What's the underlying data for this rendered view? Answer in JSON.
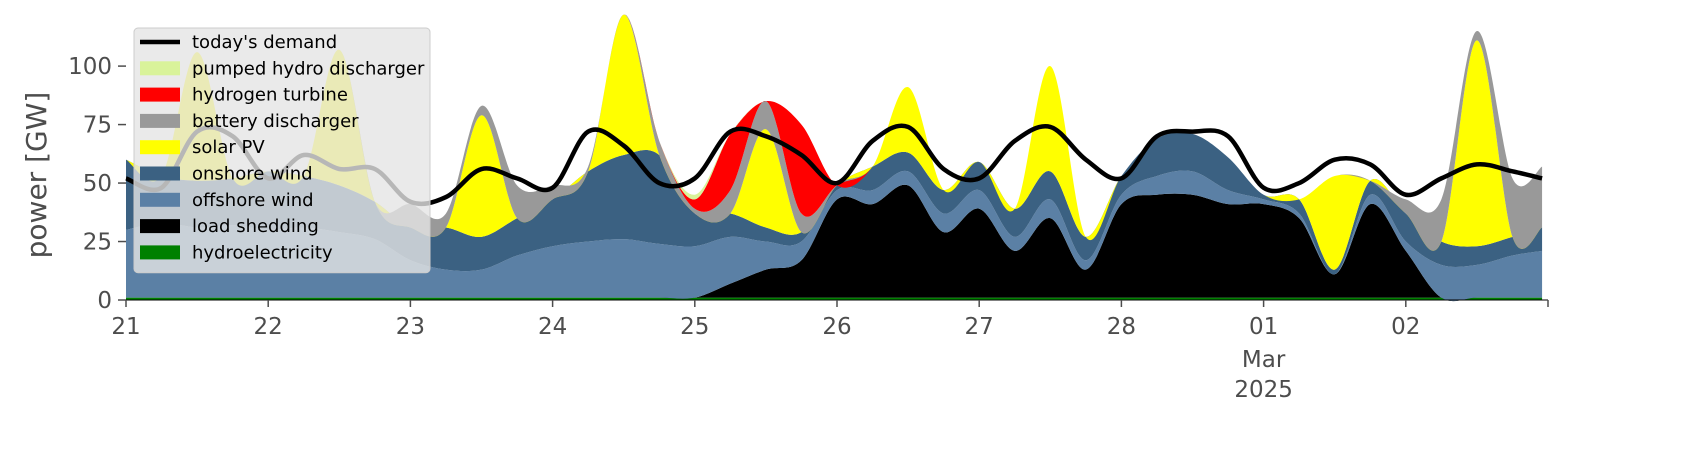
{
  "chart_data": {
    "type": "area",
    "title": "",
    "xlabel": "",
    "ylabel": "power [GW]",
    "ylim": [
      0,
      118
    ],
    "yticks": [
      0,
      25,
      50,
      75,
      100
    ],
    "x_start": "2025-02-21",
    "x_end": "2025-03-03",
    "xticks": [
      {
        "x": "2025-02-21",
        "label": "21"
      },
      {
        "x": "2025-02-22",
        "label": "22"
      },
      {
        "x": "2025-02-23",
        "label": "23"
      },
      {
        "x": "2025-02-24",
        "label": "24"
      },
      {
        "x": "2025-02-25",
        "label": "25"
      },
      {
        "x": "2025-02-26",
        "label": "26"
      },
      {
        "x": "2025-02-27",
        "label": "27"
      },
      {
        "x": "2025-02-28",
        "label": "28"
      },
      {
        "x": "2025-03-01",
        "label": "01",
        "sub": [
          "Mar",
          "2025"
        ]
      },
      {
        "x": "2025-03-02",
        "label": "02"
      }
    ],
    "x": [
      "2025-02-21 00:00",
      "2025-02-21 06:00",
      "2025-02-21 12:00",
      "2025-02-21 18:00",
      "2025-02-22 00:00",
      "2025-02-22 06:00",
      "2025-02-22 12:00",
      "2025-02-22 18:00",
      "2025-02-23 00:00",
      "2025-02-23 06:00",
      "2025-02-23 12:00",
      "2025-02-23 18:00",
      "2025-02-24 00:00",
      "2025-02-24 06:00",
      "2025-02-24 12:00",
      "2025-02-24 18:00",
      "2025-02-25 00:00",
      "2025-02-25 06:00",
      "2025-02-25 12:00",
      "2025-02-25 18:00",
      "2025-02-26 00:00",
      "2025-02-26 06:00",
      "2025-02-26 12:00",
      "2025-02-26 18:00",
      "2025-02-27 00:00",
      "2025-02-27 06:00",
      "2025-02-27 12:00",
      "2025-02-27 18:00",
      "2025-02-28 00:00",
      "2025-02-28 06:00",
      "2025-02-28 12:00",
      "2025-02-28 18:00",
      "2025-03-01 00:00",
      "2025-03-01 06:00",
      "2025-03-01 12:00",
      "2025-03-01 18:00",
      "2025-03-02 00:00",
      "2025-03-02 06:00",
      "2025-03-02 12:00",
      "2025-03-02 18:00",
      "2025-03-02 23:00"
    ],
    "series": [
      {
        "name": "hydroelectricity",
        "color": "#008000",
        "values": [
          1,
          1,
          1,
          1,
          1,
          1,
          1,
          1,
          1,
          1,
          1,
          1,
          1,
          1,
          1,
          1,
          1,
          1,
          1,
          1,
          1,
          1,
          1,
          1,
          1,
          1,
          1,
          1,
          1,
          1,
          1,
          1,
          1,
          1,
          1,
          1,
          1,
          1,
          1,
          1,
          1
        ]
      },
      {
        "name": "load shedding",
        "color": "#000000",
        "values": [
          0,
          0,
          0,
          0,
          0,
          0,
          0,
          0,
          0,
          0,
          0,
          0,
          0,
          0,
          0,
          0,
          0,
          6,
          12,
          16,
          42,
          40,
          48,
          28,
          38,
          20,
          34,
          12,
          40,
          44,
          44,
          40,
          40,
          34,
          10,
          40,
          20,
          0,
          0,
          0,
          0
        ]
      },
      {
        "name": "offshore wind",
        "color": "#5b80a5",
        "values": [
          29,
          32,
          30,
          31,
          29,
          30,
          28,
          25,
          16,
          12,
          12,
          18,
          22,
          24,
          25,
          23,
          22,
          20,
          12,
          8,
          4,
          6,
          6,
          8,
          8,
          6,
          8,
          4,
          4,
          8,
          10,
          6,
          2,
          2,
          0,
          4,
          4,
          14,
          14,
          18,
          20
        ]
      },
      {
        "name": "onshore wind",
        "color": "#3b6182",
        "values": [
          30,
          20,
          20,
          20,
          25,
          22,
          20,
          16,
          14,
          18,
          14,
          16,
          20,
          30,
          36,
          38,
          14,
          10,
          6,
          4,
          2,
          10,
          8,
          10,
          12,
          12,
          12,
          10,
          8,
          16,
          16,
          14,
          2,
          6,
          2,
          6,
          12,
          10,
          8,
          8,
          10
        ]
      },
      {
        "name": "solar PV",
        "color": "#ffff00",
        "values": [
          0,
          0,
          55,
          0,
          0,
          0,
          58,
          0,
          0,
          0,
          52,
          0,
          0,
          0,
          60,
          0,
          0,
          0,
          42,
          0,
          0,
          0,
          28,
          0,
          0,
          0,
          45,
          0,
          0,
          0,
          0,
          0,
          0,
          0,
          40,
          0,
          0,
          0,
          88,
          0,
          0
        ]
      },
      {
        "name": "battery discharger",
        "color": "#999999",
        "values": [
          0,
          0,
          0,
          0,
          0,
          0,
          0,
          0,
          10,
          6,
          4,
          14,
          6,
          2,
          0,
          6,
          2,
          10,
          12,
          8,
          0,
          0,
          0,
          0,
          0,
          0,
          0,
          0,
          0,
          0,
          0,
          0,
          0,
          0,
          0,
          0,
          6,
          18,
          4,
          25,
          26
        ]
      },
      {
        "name": "hydrogen turbine",
        "color": "#ff0000",
        "values": [
          0,
          0,
          0,
          0,
          0,
          0,
          0,
          0,
          0,
          0,
          0,
          0,
          0,
          0,
          0,
          0,
          4,
          24,
          0,
          38,
          0,
          0,
          0,
          0,
          0,
          0,
          0,
          0,
          0,
          0,
          0,
          0,
          0,
          0,
          0,
          0,
          0,
          0,
          0,
          0,
          0
        ]
      },
      {
        "name": "pumped hydro discharger",
        "color": "#d9f39a",
        "values": [
          0,
          0,
          0,
          0,
          0,
          0,
          0,
          0,
          0,
          0,
          0,
          0,
          0,
          0,
          0,
          0,
          2,
          0,
          0,
          0,
          0,
          0,
          0,
          0,
          0,
          0,
          0,
          0,
          0,
          0,
          0,
          0,
          0,
          0,
          0,
          0,
          0,
          0,
          0,
          0,
          0
        ]
      }
    ],
    "demand": {
      "name": "today's demand",
      "color": "#000000",
      "values": [
        52,
        48,
        72,
        70,
        52,
        62,
        56,
        56,
        42,
        44,
        56,
        52,
        48,
        72,
        66,
        50,
        52,
        72,
        70,
        62,
        50,
        68,
        74,
        56,
        52,
        68,
        74,
        60,
        52,
        70,
        72,
        70,
        48,
        50,
        60,
        58,
        45,
        52,
        58,
        55,
        52
      ]
    },
    "legend": {
      "position": "upper left",
      "items": [
        {
          "label": "today's demand",
          "color": "#000000",
          "kind": "line"
        },
        {
          "label": "pumped hydro discharger",
          "color": "#d9f39a",
          "kind": "patch"
        },
        {
          "label": "hydrogen turbine",
          "color": "#ff0000",
          "kind": "patch"
        },
        {
          "label": "battery discharger",
          "color": "#999999",
          "kind": "patch"
        },
        {
          "label": "solar PV",
          "color": "#ffff00",
          "kind": "patch"
        },
        {
          "label": "onshore wind",
          "color": "#3b6182",
          "kind": "patch"
        },
        {
          "label": "offshore wind",
          "color": "#5b80a5",
          "kind": "patch"
        },
        {
          "label": "load shedding",
          "color": "#000000",
          "kind": "patch"
        },
        {
          "label": "hydroelectricity",
          "color": "#008000",
          "kind": "patch"
        }
      ]
    },
    "grid": false
  }
}
